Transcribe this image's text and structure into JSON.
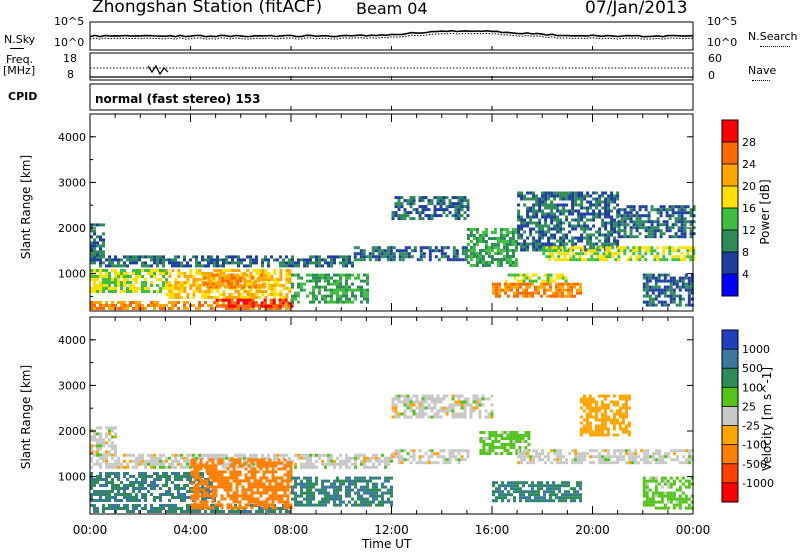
{
  "header": {
    "station": "Zhongshan Station (fitACF)",
    "beam": "Beam 04",
    "date": "07/Jan/2013"
  },
  "strips": {
    "nsky_label": "N.Sky",
    "nsearch_label": "N.Search",
    "nsky_ticks": [
      "10^5",
      "10^0"
    ],
    "nsearch_ticks": [
      "10^5",
      "10^0"
    ],
    "freq_label": "Freq.",
    "freq_unit": "[MHz]",
    "freq_ticks": [
      "18",
      "8"
    ],
    "nave_label": "Nave",
    "nave_ticks": [
      "60",
      "0"
    ],
    "cpid_label": "CPID",
    "cpid_text": "normal (fast stereo) 153"
  },
  "axes": {
    "x_label": "Time UT",
    "x_ticks": [
      "00:00",
      "04:00",
      "08:00",
      "12:00",
      "16:00",
      "20:00",
      "00:00"
    ],
    "y_label": "Slant Range [km]",
    "y_ticks": [
      "4000",
      "3000",
      "2000",
      "1000"
    ]
  },
  "power_colorbar": {
    "label": "Power [dB]",
    "ticks": [
      "28",
      "24",
      "20",
      "16",
      "12",
      "8",
      "4"
    ],
    "colors": [
      "#ff0000",
      "#ff6a00",
      "#ffa500",
      "#ffe000",
      "#3fbf3f",
      "#2e8b57",
      "#1f3fa0",
      "#0000ff"
    ]
  },
  "velocity_colorbar": {
    "label": "Velocity [m s^-1]",
    "ticks": [
      "1000",
      "500",
      "100",
      "25",
      "-25",
      "-100",
      "-500",
      "-1000"
    ],
    "colors": [
      "#1f3fbf",
      "#3a78a0",
      "#2e8b57",
      "#52c41a",
      "#c8c8c8",
      "#ffa500",
      "#ff7f00",
      "#ff4000",
      "#ff0000"
    ]
  },
  "chart_data": [
    {
      "type": "heatmap",
      "title": "Power",
      "xlabel": "Time UT",
      "ylabel": "Slant Range [km]",
      "x_range_hours": [
        0,
        24
      ],
      "ylim": [
        180,
        4500
      ],
      "colorbar_label": "Power [dB]",
      "colorbar_ticks": [
        28,
        24,
        20,
        16,
        12,
        8,
        4
      ],
      "regions": [
        {
          "t0": 0.0,
          "t1": 10.5,
          "r0": 1200,
          "r1": 1400,
          "level": 8
        },
        {
          "t0": 0.0,
          "t1": 3.0,
          "r0": 600,
          "r1": 1100,
          "level": 16
        },
        {
          "t0": 3.0,
          "t1": 8.0,
          "r0": 500,
          "r1": 1100,
          "level": 20
        },
        {
          "t0": 4.5,
          "t1": 7.0,
          "r0": 700,
          "r1": 1000,
          "level": 24
        },
        {
          "t0": 0.0,
          "t1": 8.0,
          "r0": 250,
          "r1": 400,
          "level": 24
        },
        {
          "t0": 5.0,
          "t1": 8.0,
          "r0": 300,
          "r1": 450,
          "level": 28
        },
        {
          "t0": 0.0,
          "t1": 0.5,
          "r0": 1400,
          "r1": 2100,
          "level": 8
        },
        {
          "t0": 8.0,
          "t1": 11.0,
          "r0": 400,
          "r1": 1000,
          "level": 12
        },
        {
          "t0": 10.5,
          "t1": 15.0,
          "r0": 1300,
          "r1": 1600,
          "level": 8
        },
        {
          "t0": 12.0,
          "t1": 15.0,
          "r0": 2200,
          "r1": 2700,
          "level": 8
        },
        {
          "t0": 15.0,
          "t1": 17.0,
          "r0": 1200,
          "r1": 2000,
          "level": 12
        },
        {
          "t0": 16.0,
          "t1": 19.5,
          "r0": 500,
          "r1": 800,
          "level": 24
        },
        {
          "t0": 16.5,
          "t1": 19.0,
          "r0": 850,
          "r1": 1000,
          "level": 16
        },
        {
          "t0": 17.0,
          "t1": 21.0,
          "r0": 1500,
          "r1": 2800,
          "level": 8
        },
        {
          "t0": 18.0,
          "t1": 24.0,
          "r0": 1300,
          "r1": 1600,
          "level": 16
        },
        {
          "t0": 21.0,
          "t1": 24.0,
          "r0": 1800,
          "r1": 2500,
          "level": 8
        },
        {
          "t0": 22.0,
          "t1": 24.0,
          "r0": 300,
          "r1": 1000,
          "level": 8
        }
      ]
    },
    {
      "type": "heatmap",
      "title": "Velocity",
      "xlabel": "Time UT",
      "ylabel": "Slant Range [km]",
      "x_range_hours": [
        0,
        24
      ],
      "ylim": [
        180,
        4500
      ],
      "colorbar_label": "Velocity [m s^-1]",
      "colorbar_ticks": [
        1000,
        500,
        100,
        25,
        -25,
        -100,
        -500,
        -1000
      ],
      "regions": [
        {
          "t0": 0.0,
          "t1": 12.0,
          "r0": 1200,
          "r1": 1500,
          "level": 0
        },
        {
          "t0": 0.0,
          "t1": 5.0,
          "r0": 500,
          "r1": 1100,
          "level": 300
        },
        {
          "t0": 0.0,
          "t1": 8.0,
          "r0": 250,
          "r1": 400,
          "level": 300
        },
        {
          "t0": 4.0,
          "t1": 8.0,
          "r0": 300,
          "r1": 1400,
          "level": -300
        },
        {
          "t0": 0.0,
          "t1": 1.0,
          "r0": 1500,
          "r1": 2100,
          "level": 0
        },
        {
          "t0": 8.0,
          "t1": 12.0,
          "r0": 400,
          "r1": 1000,
          "level": 300
        },
        {
          "t0": 12.0,
          "t1": 15.0,
          "r0": 1300,
          "r1": 1600,
          "level": 0
        },
        {
          "t0": 12.0,
          "t1": 16.0,
          "r0": 2300,
          "r1": 2800,
          "level": 0
        },
        {
          "t0": 15.5,
          "t1": 17.5,
          "r0": 1500,
          "r1": 2000,
          "level": 50
        },
        {
          "t0": 16.0,
          "t1": 19.5,
          "r0": 500,
          "r1": 900,
          "level": 300
        },
        {
          "t0": 17.0,
          "t1": 24.0,
          "r0": 1300,
          "r1": 1600,
          "level": 0
        },
        {
          "t0": 19.5,
          "t1": 21.5,
          "r0": 1900,
          "r1": 2800,
          "level": -70
        },
        {
          "t0": 22.0,
          "t1": 24.0,
          "r0": 300,
          "r1": 1000,
          "level": 50
        }
      ]
    }
  ]
}
